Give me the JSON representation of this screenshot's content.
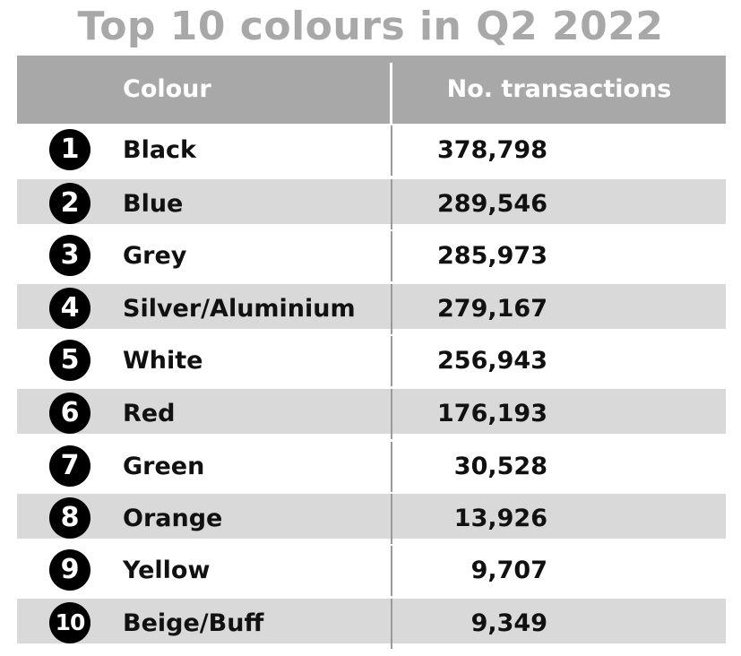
{
  "chart_data": {
    "type": "table",
    "title": "Top 10 colours in Q2 2022",
    "columns": [
      "Colour",
      "No. transactions"
    ],
    "rows": [
      {
        "rank": "1",
        "colour": "Black",
        "transactions": "378,798"
      },
      {
        "rank": "2",
        "colour": "Blue",
        "transactions": "289,546"
      },
      {
        "rank": "3",
        "colour": "Grey",
        "transactions": "285,973"
      },
      {
        "rank": "4",
        "colour": "Silver/Aluminium",
        "transactions": "279,167"
      },
      {
        "rank": "5",
        "colour": "White",
        "transactions": "256,943"
      },
      {
        "rank": "6",
        "colour": "Red",
        "transactions": "176,193"
      },
      {
        "rank": "7",
        "colour": "Green",
        "transactions": "30,528"
      },
      {
        "rank": "8",
        "colour": "Orange",
        "transactions": "13,926"
      },
      {
        "rank": "9",
        "colour": "Yellow",
        "transactions": "9,707"
      },
      {
        "rank": "10",
        "colour": "Beige/Buff",
        "transactions": "9,349"
      }
    ],
    "colors": {
      "header_bg": "#a8a8a8",
      "title": "#a8a8a8",
      "shaded_row": "#d9d9d9",
      "badge": "#000000"
    }
  }
}
